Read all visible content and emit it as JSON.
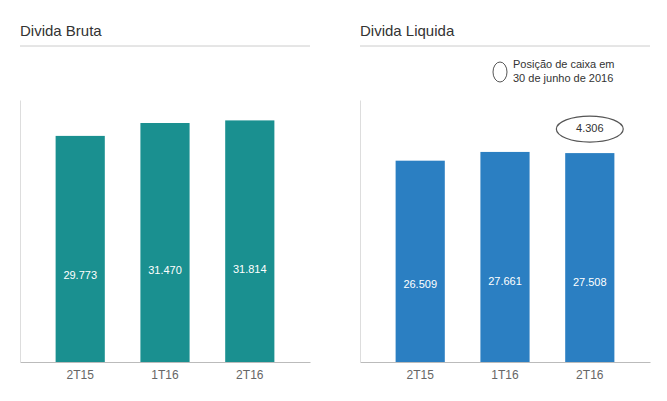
{
  "chart_data": [
    {
      "type": "bar",
      "title": "Divida Bruta",
      "categories": [
        "2T15",
        "1T16",
        "2T16"
      ],
      "values": [
        29773,
        31470,
        31814
      ],
      "value_labels": [
        "29.773",
        "31.470",
        "31.814"
      ],
      "data_labels": true,
      "color": "#1a9090",
      "ylim": [
        0,
        34500
      ],
      "tick_labels": "x"
    },
    {
      "type": "bar",
      "title": "Divida Liquida",
      "categories": [
        "2T15",
        "1T16",
        "2T16"
      ],
      "values": [
        26509,
        27661,
        27508
      ],
      "value_labels": [
        "26.509",
        "27.661",
        "27.508"
      ],
      "data_labels": true,
      "color": "#2b7fc2",
      "ylim": [
        0,
        34500
      ],
      "tick_labels": "x",
      "annotations": [
        {
          "text": "4.306",
          "category": "2T16",
          "marker": "ellipse"
        },
        {
          "text": "Posição de caixa em\n30 de junho de 2016",
          "marker": "ellipse"
        }
      ]
    }
  ]
}
